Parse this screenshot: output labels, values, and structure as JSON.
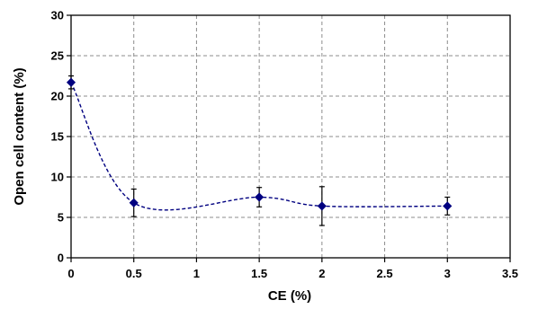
{
  "chart_data": {
    "type": "line",
    "xlabel": "CE (%)",
    "ylabel": "Open cell content (%)",
    "xlim": [
      0,
      3.5
    ],
    "ylim": [
      0,
      30
    ],
    "x_ticks": [
      0,
      0.5,
      1,
      1.5,
      2,
      2.5,
      3,
      3.5
    ],
    "x_tick_labels": [
      "0",
      "0.5",
      "1",
      "1.5",
      "2",
      "2.5",
      "3",
      "3.5"
    ],
    "y_ticks": [
      0,
      5,
      10,
      15,
      20,
      25,
      30
    ],
    "y_tick_labels": [
      "0",
      "5",
      "10",
      "15",
      "20",
      "25",
      "30"
    ],
    "grid": true,
    "grid_style": "dashed",
    "line_style": "dashed smoothed",
    "marker": "diamond",
    "series": [
      {
        "color": "#000080",
        "x": [
          0,
          0.5,
          1.5,
          2,
          3
        ],
        "y": [
          21.7,
          6.8,
          7.5,
          6.4,
          6.4
        ],
        "error": [
          0.8,
          1.7,
          1.2,
          2.4,
          1.1
        ]
      }
    ]
  }
}
